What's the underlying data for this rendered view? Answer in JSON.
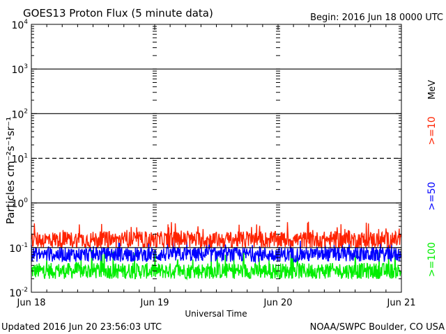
{
  "chart_data": {
    "type": "line",
    "title": "GOES13 Proton Flux (5 minute data)",
    "begin_label": "Begin: 2016 Jun 18 0000 UTC",
    "xlabel": "Universal Time",
    "ylabel": "Particles cm⁻²s⁻¹sr⁻¹",
    "y_scale": "log",
    "ylim": [
      0.01,
      10000
    ],
    "x_range": [
      "2016-06-18T00:00",
      "2016-06-21T00:00"
    ],
    "x_ticks": [
      {
        "date": "2016-06-18",
        "label": "Jun 18"
      },
      {
        "date": "2016-06-19",
        "label": "Jun 19"
      },
      {
        "date": "2016-06-20",
        "label": "Jun 20"
      },
      {
        "date": "2016-06-21",
        "label": "Jun 21"
      }
    ],
    "y_ticks": [
      {
        "value": 0.01,
        "base": "10",
        "exp": "-2"
      },
      {
        "value": 0.1,
        "base": "10",
        "exp": "-1"
      },
      {
        "value": 1,
        "base": "10",
        "exp": "0"
      },
      {
        "value": 10,
        "base": "10",
        "exp": "1"
      },
      {
        "value": 100,
        "base": "10",
        "exp": "2"
      },
      {
        "value": 1000,
        "base": "10",
        "exp": "3"
      },
      {
        "value": 10000,
        "base": "10",
        "exp": "4"
      }
    ],
    "threshold_line": {
      "value": 10,
      "style": "dashed"
    },
    "data_end": "2016-06-20T23:56",
    "series": [
      {
        "name": ">=10",
        "color": "#ff2200",
        "typical": 0.15,
        "min": 0.08,
        "max": 0.38
      },
      {
        "name": ">=50",
        "color": "#0000ff",
        "typical": 0.07,
        "min": 0.04,
        "max": 0.16
      },
      {
        "name": ">=100",
        "color": "#00ee00",
        "typical": 0.03,
        "min": 0.02,
        "max": 0.09
      }
    ],
    "legend_unit": "MeV",
    "grid": true,
    "legend_position": "right"
  },
  "footer": {
    "updated": "Updated 2016 Jun 20 23:56:03 UTC",
    "source": "NOAA/SWPC Boulder, CO USA"
  }
}
